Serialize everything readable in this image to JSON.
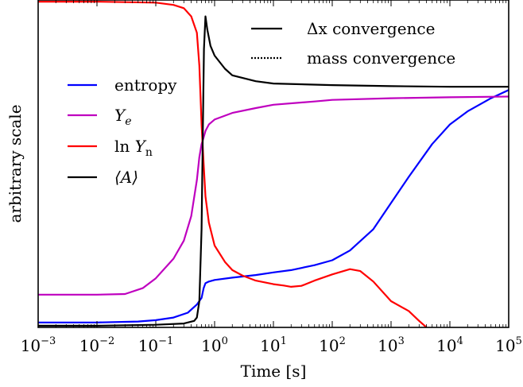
{
  "chart_data": {
    "type": "line",
    "xlabel": "Time [s]",
    "ylabel": "arbitrary scale",
    "xscale": "log",
    "xlim": [
      0.001,
      100000
    ],
    "ylim": [
      0,
      1
    ],
    "yticks_labeled": false,
    "grid": false,
    "x_tick_labels": [
      {
        "x": 0.001,
        "base": "10",
        "exp": "−3"
      },
      {
        "x": 0.01,
        "base": "10",
        "exp": "−2"
      },
      {
        "x": 0.1,
        "base": "10",
        "exp": "−1"
      },
      {
        "x": 1,
        "base": "10",
        "exp": "0"
      },
      {
        "x": 10,
        "base": "10",
        "exp": "1"
      },
      {
        "x": 100,
        "base": "10",
        "exp": "2"
      },
      {
        "x": 1000,
        "base": "10",
        "exp": "3"
      },
      {
        "x": 10000,
        "base": "10",
        "exp": "4"
      },
      {
        "x": 100000,
        "base": "10",
        "exp": "5"
      }
    ],
    "series": [
      {
        "name": "entropy",
        "color": "#0000ff",
        "points": [
          [
            0.001,
            0.015
          ],
          [
            0.01,
            0.015
          ],
          [
            0.05,
            0.018
          ],
          [
            0.1,
            0.022
          ],
          [
            0.2,
            0.03
          ],
          [
            0.35,
            0.045
          ],
          [
            0.5,
            0.07
          ],
          [
            0.6,
            0.09
          ],
          [
            0.65,
            0.12
          ],
          [
            0.7,
            0.135
          ],
          [
            0.8,
            0.14
          ],
          [
            1,
            0.145
          ],
          [
            2,
            0.152
          ],
          [
            5,
            0.16
          ],
          [
            10,
            0.168
          ],
          [
            20,
            0.175
          ],
          [
            50,
            0.19
          ],
          [
            100,
            0.205
          ],
          [
            200,
            0.235
          ],
          [
            500,
            0.3
          ],
          [
            1000,
            0.38
          ],
          [
            2000,
            0.46
          ],
          [
            5000,
            0.56
          ],
          [
            10000,
            0.62
          ],
          [
            20000,
            0.66
          ],
          [
            50000,
            0.7
          ],
          [
            100000,
            0.725
          ]
        ]
      },
      {
        "name": "Y_e",
        "color": "#bf00bf",
        "points": [
          [
            0.001,
            0.1
          ],
          [
            0.01,
            0.1
          ],
          [
            0.03,
            0.102
          ],
          [
            0.06,
            0.12
          ],
          [
            0.1,
            0.15
          ],
          [
            0.2,
            0.21
          ],
          [
            0.3,
            0.265
          ],
          [
            0.4,
            0.34
          ],
          [
            0.5,
            0.45
          ],
          [
            0.55,
            0.52
          ],
          [
            0.6,
            0.56
          ],
          [
            0.65,
            0.58
          ],
          [
            0.7,
            0.6
          ],
          [
            0.8,
            0.62
          ],
          [
            1,
            0.635
          ],
          [
            2,
            0.655
          ],
          [
            5,
            0.67
          ],
          [
            10,
            0.68
          ],
          [
            50,
            0.69
          ],
          [
            100,
            0.695
          ],
          [
            1000,
            0.7
          ],
          [
            10000,
            0.703
          ],
          [
            100000,
            0.705
          ]
        ]
      },
      {
        "name": "ln Y_n",
        "color": "#ff0000",
        "points": [
          [
            0.001,
            0.995
          ],
          [
            0.01,
            0.995
          ],
          [
            0.1,
            0.992
          ],
          [
            0.2,
            0.985
          ],
          [
            0.3,
            0.975
          ],
          [
            0.4,
            0.95
          ],
          [
            0.5,
            0.9
          ],
          [
            0.55,
            0.8
          ],
          [
            0.6,
            0.62
          ],
          [
            0.65,
            0.5
          ],
          [
            0.7,
            0.4
          ],
          [
            0.8,
            0.32
          ],
          [
            1,
            0.25
          ],
          [
            1.5,
            0.2
          ],
          [
            2,
            0.175
          ],
          [
            3,
            0.158
          ],
          [
            5,
            0.143
          ],
          [
            10,
            0.132
          ],
          [
            15,
            0.128
          ],
          [
            20,
            0.124
          ],
          [
            30,
            0.127
          ],
          [
            50,
            0.143
          ],
          [
            100,
            0.162
          ],
          [
            200,
            0.178
          ],
          [
            300,
            0.172
          ],
          [
            500,
            0.14
          ],
          [
            1000,
            0.08
          ],
          [
            2000,
            0.05
          ],
          [
            3000,
            0.02
          ],
          [
            4000,
            0.0
          ]
        ]
      },
      {
        "name": "⟨A⟩",
        "color": "#000000",
        "points": [
          [
            0.001,
            0.005
          ],
          [
            0.01,
            0.005
          ],
          [
            0.1,
            0.008
          ],
          [
            0.3,
            0.012
          ],
          [
            0.45,
            0.02
          ],
          [
            0.5,
            0.03
          ],
          [
            0.55,
            0.08
          ],
          [
            0.6,
            0.3
          ],
          [
            0.63,
            0.6
          ],
          [
            0.66,
            0.85
          ],
          [
            0.7,
            0.95
          ],
          [
            0.75,
            0.91
          ],
          [
            0.85,
            0.86
          ],
          [
            1,
            0.83
          ],
          [
            1.5,
            0.79
          ],
          [
            2,
            0.77
          ],
          [
            5,
            0.752
          ],
          [
            10,
            0.745
          ],
          [
            100,
            0.74
          ],
          [
            1000,
            0.737
          ],
          [
            10000,
            0.735
          ],
          [
            100000,
            0.735
          ]
        ]
      }
    ],
    "legend_main": {
      "placement": "left",
      "entries": [
        {
          "text": "entropy",
          "color": "#0000ff",
          "math": false
        },
        {
          "text": "Y",
          "sub": "e",
          "color": "#bf00bf",
          "math": true
        },
        {
          "text": "ln Y",
          "sub": "n",
          "color": "#ff0000",
          "math": true
        },
        {
          "text": "⟨A⟩",
          "color": "#000000",
          "math": true
        }
      ]
    },
    "legend_style": {
      "placement": "top-right",
      "entries": [
        {
          "text": "Δx convergence",
          "style": "solid"
        },
        {
          "text": "mass convergence",
          "style": "dotted"
        }
      ]
    }
  }
}
